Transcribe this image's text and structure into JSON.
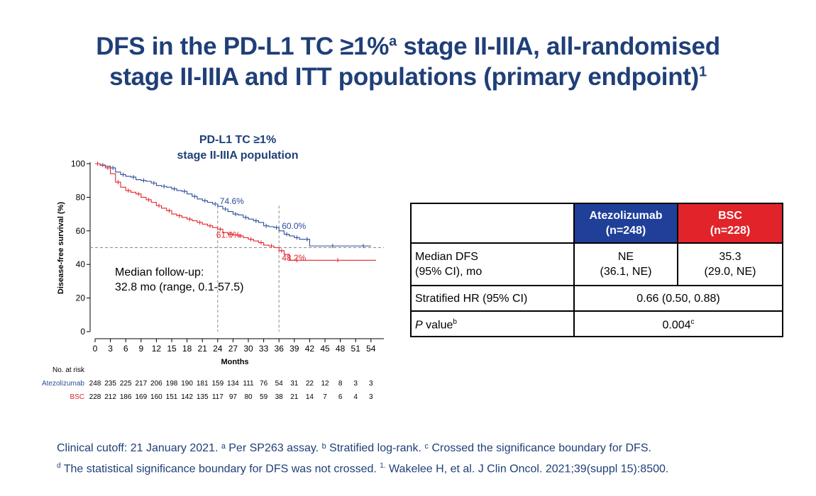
{
  "slide": {
    "title_line1_a": "DFS in the PD-L1 TC ≥1%",
    "title_line1_sup": "a",
    "title_line1_b": " stage II-IIIA, all-randomised",
    "title_line2_a": "stage II-IIIA and ITT populations (primary endpoint)",
    "title_line2_sup": "1"
  },
  "chart_title": {
    "line1": "PD-L1 TC ≥1%",
    "line2": "stage II-IIIA population"
  },
  "chart_data": {
    "type": "line",
    "title": "PD-L1 TC ≥1% stage II-IIIA population",
    "xlabel": "Months",
    "ylabel": "Disease-free survival (%)",
    "xlim": [
      0,
      55
    ],
    "ylim": [
      0,
      100
    ],
    "xticks": [
      0,
      3,
      6,
      9,
      12,
      15,
      18,
      21,
      24,
      27,
      30,
      33,
      36,
      39,
      42,
      45,
      48,
      51,
      54
    ],
    "yticks": [
      0,
      20,
      40,
      60,
      80,
      100
    ],
    "reference_lines": {
      "y": 50,
      "x": [
        24,
        36
      ]
    },
    "series": [
      {
        "name": "Atezolizumab",
        "color": "#2c4b9b",
        "points": [
          [
            0,
            100
          ],
          [
            1,
            99.2
          ],
          [
            2,
            98.5
          ],
          [
            3,
            97.5
          ],
          [
            4,
            95
          ],
          [
            5,
            93.5
          ],
          [
            6,
            92.5
          ],
          [
            7,
            92
          ],
          [
            8,
            90.5
          ],
          [
            9,
            90
          ],
          [
            10,
            89.5
          ],
          [
            11,
            88.5
          ],
          [
            12,
            87
          ],
          [
            13,
            86.5
          ],
          [
            14,
            86
          ],
          [
            15,
            85
          ],
          [
            16,
            84
          ],
          [
            17,
            83.5
          ],
          [
            18,
            82
          ],
          [
            19,
            80.5
          ],
          [
            20,
            79
          ],
          [
            21,
            78
          ],
          [
            22,
            77
          ],
          [
            23,
            76
          ],
          [
            24,
            74.6
          ],
          [
            25,
            73
          ],
          [
            26,
            71.5
          ],
          [
            27,
            70
          ],
          [
            28,
            69.5
          ],
          [
            29,
            68
          ],
          [
            30,
            67
          ],
          [
            31,
            66
          ],
          [
            32,
            65
          ],
          [
            33,
            63
          ],
          [
            34,
            62.5
          ],
          [
            35,
            62
          ],
          [
            36,
            60
          ],
          [
            37,
            58
          ],
          [
            38,
            57
          ],
          [
            39,
            56
          ],
          [
            40,
            55
          ],
          [
            41,
            55
          ],
          [
            42,
            51
          ],
          [
            45,
            51
          ],
          [
            48,
            51
          ],
          [
            51,
            51
          ],
          [
            54,
            51
          ]
        ]
      },
      {
        "name": "BSC",
        "color": "#e1242a",
        "points": [
          [
            0,
            100
          ],
          [
            1,
            99
          ],
          [
            2,
            97.5
          ],
          [
            3,
            94
          ],
          [
            4,
            89
          ],
          [
            5,
            86
          ],
          [
            6,
            84
          ],
          [
            7,
            83
          ],
          [
            8,
            82
          ],
          [
            9,
            80
          ],
          [
            10,
            78.5
          ],
          [
            11,
            77
          ],
          [
            12,
            75
          ],
          [
            13,
            73.5
          ],
          [
            14,
            72
          ],
          [
            15,
            70
          ],
          [
            16,
            69
          ],
          [
            17,
            68
          ],
          [
            18,
            67
          ],
          [
            19,
            66
          ],
          [
            20,
            65
          ],
          [
            21,
            64
          ],
          [
            22,
            63
          ],
          [
            23,
            62
          ],
          [
            24,
            61
          ],
          [
            25,
            59
          ],
          [
            26,
            58
          ],
          [
            27,
            57.5
          ],
          [
            28,
            57
          ],
          [
            29,
            56
          ],
          [
            30,
            55
          ],
          [
            31,
            54
          ],
          [
            32,
            53
          ],
          [
            33,
            51.5
          ],
          [
            34,
            51
          ],
          [
            35,
            50
          ],
          [
            36,
            48.2
          ],
          [
            37,
            46
          ],
          [
            38,
            42.5
          ],
          [
            41,
            42.5
          ],
          [
            45,
            42.5
          ],
          [
            50,
            42.5
          ],
          [
            55,
            42.5
          ]
        ]
      }
    ],
    "landmark_labels": [
      {
        "text": "74.6%",
        "series": "Atezolizumab",
        "x": 24,
        "y": 74.6
      },
      {
        "text": "60.0%",
        "series": "Atezolizumab",
        "x": 36,
        "y": 60.0
      },
      {
        "text": "61.0%",
        "series": "BSC",
        "x": 24,
        "y": 61.0
      },
      {
        "text": "48.2%",
        "series": "BSC",
        "x": 36,
        "y": 48.2
      }
    ],
    "at_risk": {
      "header": "No. at risk",
      "rows": [
        {
          "label": "Atezolizumab",
          "color": "#2c4b9b",
          "values": [
            "248",
            "235",
            "225",
            "217",
            "206",
            "198",
            "190",
            "181",
            "159",
            "134",
            "111",
            "76",
            "54",
            "31",
            "22",
            "12",
            "8",
            "3",
            "3"
          ]
        },
        {
          "label": "BSC",
          "color": "#e1242a",
          "values": [
            "228",
            "212",
            "186",
            "169",
            "160",
            "151",
            "142",
            "135",
            "117",
            "97",
            "80",
            "59",
            "38",
            "21",
            "14",
            "7",
            "6",
            "4",
            "3"
          ]
        }
      ]
    }
  },
  "followup": {
    "line1": "Median follow-up:",
    "line2": "32.8 mo (range, 0.1-57.5)"
  },
  "table": {
    "header": {
      "atezo": {
        "name": "Atezolizumab",
        "n": "(n=248)",
        "bg": "#1f3f99"
      },
      "bsc": {
        "name": "BSC",
        "n": "(n=228)",
        "bg": "#e1242a"
      }
    },
    "rows": {
      "median_dfs": {
        "label1": "Median DFS",
        "label2": "(95% CI), mo",
        "atezo1": "NE",
        "atezo2": "(36.1, NE)",
        "bsc1": "35.3",
        "bsc2": "(29.0, NE)"
      },
      "hr": {
        "label": "Stratified HR (95% CI)",
        "value": "0.66 (0.50, 0.88)"
      },
      "pvalue": {
        "label_p": "P",
        "label_rest": " value",
        "label_sup": "b",
        "value": "0.004",
        "value_sup": "c"
      }
    }
  },
  "footnotes": {
    "line1": "Clinical cutoff: 21 January 2021. ᵃ Per SP263 assay. ᵇ Stratified log-rank. ᶜ Crossed the significance boundary for DFS.",
    "line2_sup": "d",
    "line2_a": " The statistical significance boundary for DFS was not crossed. ",
    "line2_ref": "1.",
    "line2_b": " Wakelee H, et al. J Clin Oncol. 2021;39(suppl 15):8500."
  }
}
